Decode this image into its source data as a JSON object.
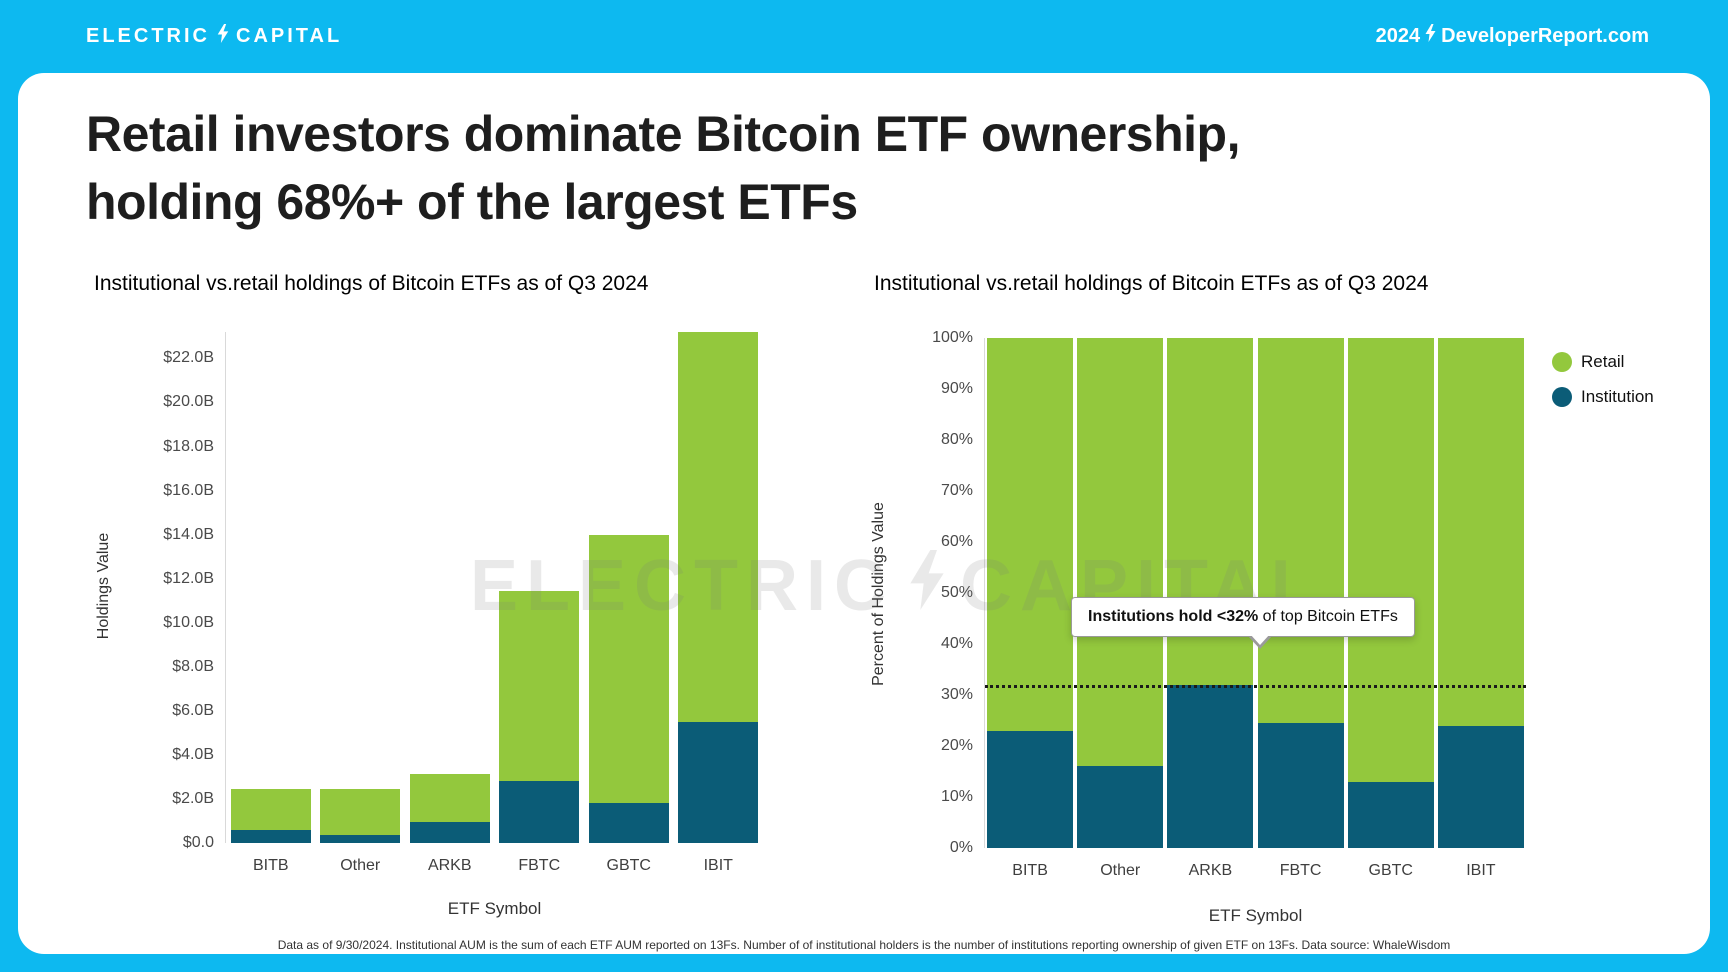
{
  "topbar": {
    "logo": {
      "left": "ELECTRIC",
      "right": "CAPITAL"
    },
    "site": {
      "year": "2024",
      "domain": "DeveloperReport.com"
    }
  },
  "headline": {
    "line1": "Retail investors dominate Bitcoin ETF ownership,",
    "line2": "holding 68%+ of the largest ETFs"
  },
  "watermark": {
    "left": "ELECTRIC",
    "right": "CAPITAL"
  },
  "footnote": "Data as of 9/30/2024. Institutional AUM is the sum of each ETF AUM reported on 13Fs. Number of of institutional holders is the number of institutions reporting ownership of given ETF on 13Fs. Data source: WhaleWisdom",
  "colors": {
    "background": "#0db9f0",
    "retail": "#93c83d",
    "institution": "#0b5c77"
  },
  "chart_data": [
    {
      "id": "value-chart",
      "type": "bar",
      "stacked": true,
      "title": "Institutional vs.retail holdings of Bitcoin ETFs as of Q3 2024",
      "categories": [
        "BITB",
        "Other",
        "ARKB",
        "FBTC",
        "GBTC",
        "IBIT"
      ],
      "series": [
        {
          "name": "Institution",
          "color": "#0b5c77",
          "values": [
            0.6,
            0.35,
            0.95,
            2.8,
            1.8,
            5.5
          ]
        },
        {
          "name": "Retail",
          "color": "#93c83d",
          "values": [
            1.85,
            2.1,
            2.2,
            8.65,
            12.2,
            17.7
          ]
        }
      ],
      "totals": [
        2.45,
        2.45,
        3.15,
        11.45,
        14.0,
        23.2
      ],
      "xlabel": "ETF Symbol",
      "ylabel": "Holdings Value",
      "ylim": [
        0,
        23.2
      ],
      "ytick_values": [
        0,
        2,
        4,
        6,
        8,
        10,
        12,
        14,
        16,
        18,
        20,
        22
      ],
      "ytick_labels": [
        "$0.0",
        "$2.0B",
        "$4.0B",
        "$6.0B",
        "$8.0B",
        "$10.0B",
        "$12.0B",
        "$14.0B",
        "$16.0B",
        "$18.0B",
        "$20.0B",
        "$22.0B"
      ],
      "legend_position": "none",
      "grid": false
    },
    {
      "id": "percent-chart",
      "type": "bar",
      "stacked": true,
      "percent": true,
      "title": "Institutional vs.retail holdings of Bitcoin ETFs as of Q3 2024",
      "categories": [
        "BITB",
        "Other",
        "ARKB",
        "FBTC",
        "GBTC",
        "IBIT"
      ],
      "series": [
        {
          "name": "Institution",
          "color": "#0b5c77",
          "values": [
            23,
            16,
            32,
            24.5,
            13,
            24
          ]
        },
        {
          "name": "Retail",
          "color": "#93c83d",
          "values": [
            77,
            84,
            68,
            75.5,
            87,
            76
          ]
        }
      ],
      "xlabel": "ETF Symbol",
      "ylabel": "Percent of Holdings Value",
      "ylim": [
        0,
        100
      ],
      "ytick_values": [
        0,
        10,
        20,
        30,
        40,
        50,
        60,
        70,
        80,
        90,
        100
      ],
      "ytick_labels": [
        "0%",
        "10%",
        "20%",
        "30%",
        "40%",
        "50%",
        "60%",
        "70%",
        "80%",
        "90%",
        "100%"
      ],
      "reference_line": {
        "value": 32
      },
      "annotation": {
        "bold": "Institutions hold <32%",
        "text": " of top Bitcoin ETFs"
      },
      "legend": [
        {
          "label": "Retail",
          "color": "#93c83d"
        },
        {
          "label": "Institution",
          "color": "#0b5c77"
        }
      ],
      "legend_position": "right",
      "grid": false
    }
  ]
}
